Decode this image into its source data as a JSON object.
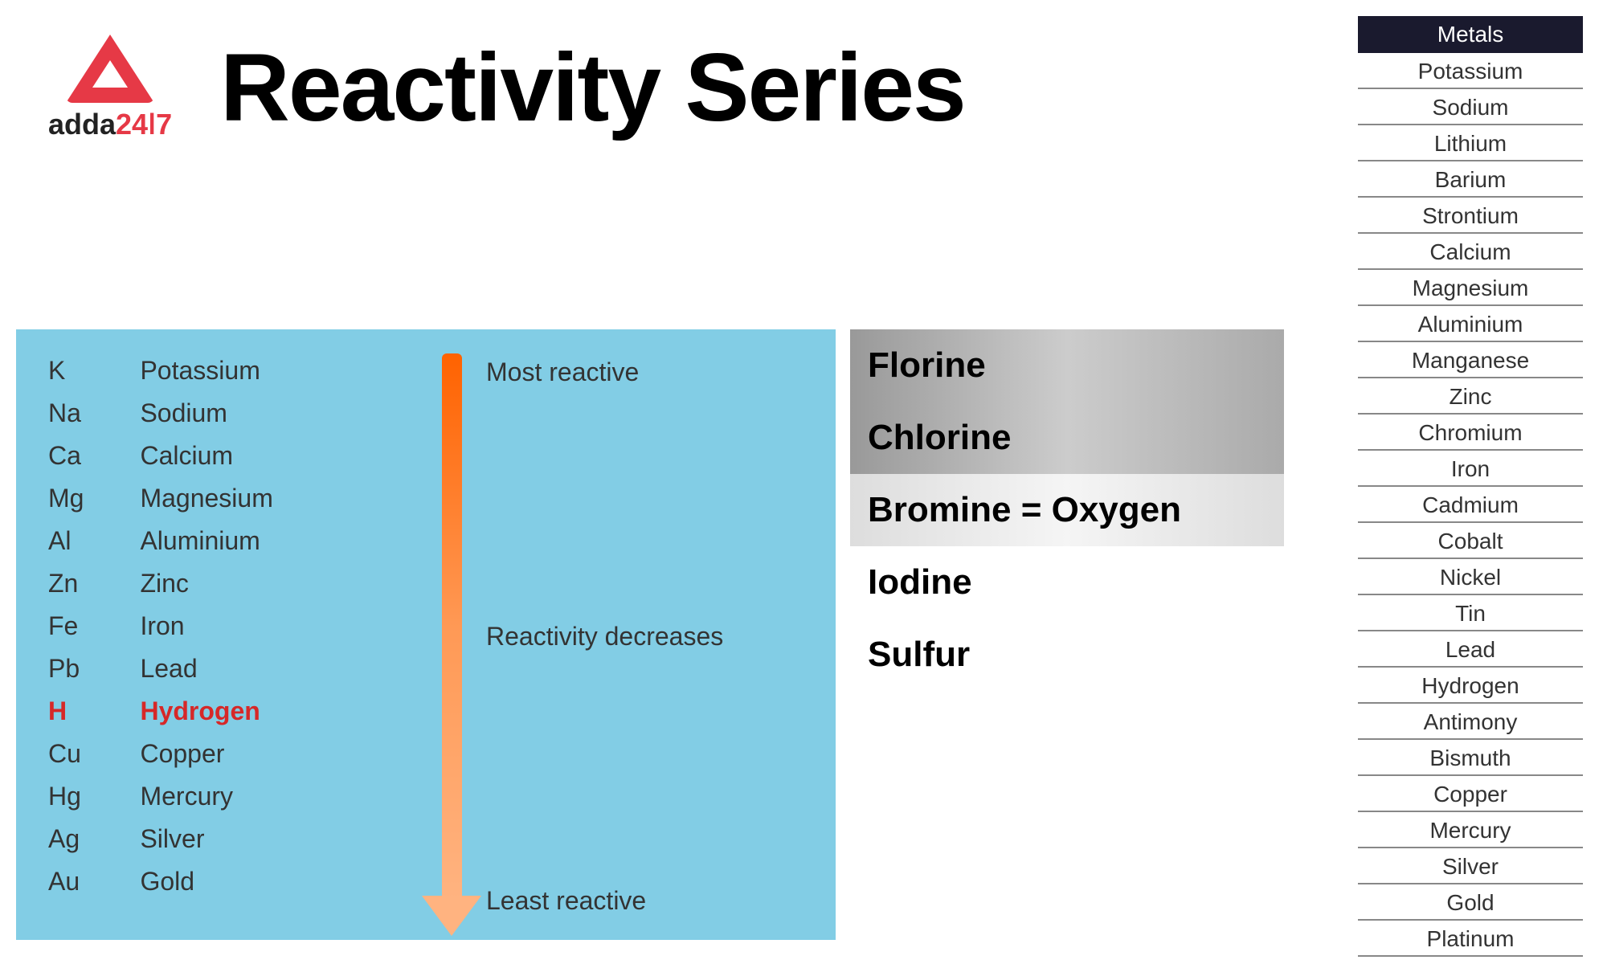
{
  "logo": {
    "brand_part1": "adda",
    "brand_part2": "24ǀ7"
  },
  "title": "Reactivity Series",
  "blue_panel": {
    "background_color": "#82cde5",
    "text_color": "#333333",
    "highlight_color": "#d62828",
    "font_size": 32,
    "arrow_gradient": [
      "#ff6200",
      "#ff9955",
      "#ffb380"
    ],
    "elements": [
      {
        "symbol": "K",
        "name": "Potassium",
        "highlight": false
      },
      {
        "symbol": "Na",
        "name": "Sodium",
        "highlight": false
      },
      {
        "symbol": "Ca",
        "name": "Calcium",
        "highlight": false
      },
      {
        "symbol": "Mg",
        "name": "Magnesium",
        "highlight": false
      },
      {
        "symbol": "Al",
        "name": "Aluminium",
        "highlight": false
      },
      {
        "symbol": "Zn",
        "name": "Zinc",
        "highlight": false
      },
      {
        "symbol": "Fe",
        "name": "Iron",
        "highlight": false
      },
      {
        "symbol": "Pb",
        "name": "Lead",
        "highlight": false
      },
      {
        "symbol": "H",
        "name": "Hydrogen",
        "highlight": true
      },
      {
        "symbol": "Cu",
        "name": "Copper",
        "highlight": false
      },
      {
        "symbol": "Hg",
        "name": "Mercury",
        "highlight": false
      },
      {
        "symbol": "Ag",
        "name": "Silver",
        "highlight": false
      },
      {
        "symbol": "Au",
        "name": "Gold",
        "highlight": false
      }
    ],
    "labels": {
      "top": "Most reactive",
      "mid": "Reactivity decreases",
      "bottom": "Least reactive"
    }
  },
  "nonmetals": {
    "font_size": 44,
    "rows": [
      {
        "text": "Florine",
        "shade": "nm-shade1"
      },
      {
        "text": "Chlorine",
        "shade": "nm-shade1"
      },
      {
        "text": "Bromine = Oxygen",
        "shade": "nm-shade2"
      },
      {
        "text": "Iodine",
        "shade": "nm-white"
      },
      {
        "text": "Sulfur",
        "shade": "nm-white"
      }
    ]
  },
  "metals_table": {
    "header": "Metals",
    "header_bg": "#1a1a2e",
    "header_color": "#ffffff",
    "border_color": "#888888",
    "font_size": 28,
    "rows": [
      "Potassium",
      "Sodium",
      "Lithium",
      "Barium",
      "Strontium",
      "Calcium",
      "Magnesium",
      "Aluminium",
      "Manganese",
      "Zinc",
      "Chromium",
      "Iron",
      "Cadmium",
      "Cobalt",
      "Nickel",
      "Tin",
      "Lead",
      "Hydrogen",
      "Antimony",
      "Bismuth",
      "Copper",
      "Mercury",
      "Silver",
      "Gold",
      "Platinum"
    ]
  }
}
